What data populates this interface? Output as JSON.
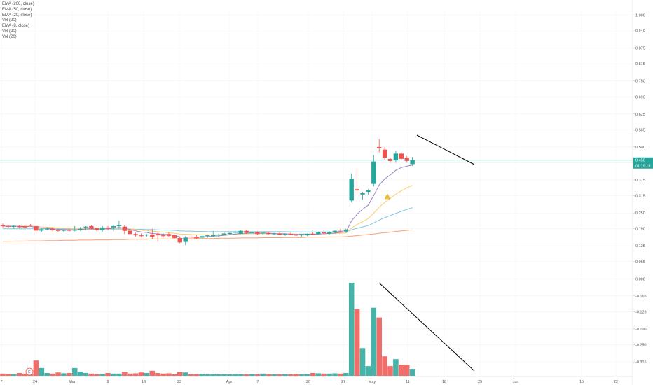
{
  "legend": [
    "EMA (200, close)",
    "EMA (50, close)",
    "EMA (20, close)",
    "Vol (20)",
    "EMA (8, close)",
    "Vol (20)",
    "Vol (20)"
  ],
  "price_tag": {
    "price": "0.450",
    "countdown": "01:19:19"
  },
  "marker_label": "E",
  "colors": {
    "up": "#26a69a",
    "down": "#ef5350",
    "ema200": "#f7a26b",
    "ema50": "#7ec8e3",
    "ema20": "#ffcc66",
    "ema8": "#9b86c2",
    "trend": "#000000",
    "price_line": "#26a69a"
  },
  "chart_data": {
    "type": "candlestick",
    "price_axis": {
      "ticks": [
        "1.000",
        "0.940",
        "0.875",
        "0.815",
        "0.750",
        "0.690",
        "0.625",
        "0.565",
        "0.500",
        "0.440",
        "0.375",
        "0.315",
        "0.250",
        "0.190",
        "0.125",
        "0.065",
        "0.000",
        "-0.065",
        "-0.125",
        "-0.190",
        "-0.250",
        "-0.315"
      ],
      "range": [
        -0.35,
        1.02
      ]
    },
    "time_axis": {
      "labels": [
        "7",
        "24",
        "Mar",
        "9",
        "16",
        "23",
        "Apr",
        "7",
        "20",
        "27",
        "May",
        "11",
        "18",
        "25",
        "Jun",
        "15",
        "22"
      ]
    },
    "candles": [
      {
        "o": 0.205,
        "h": 0.21,
        "l": 0.195,
        "c": 0.2
      },
      {
        "o": 0.2,
        "h": 0.205,
        "l": 0.192,
        "c": 0.198
      },
      {
        "o": 0.198,
        "h": 0.204,
        "l": 0.19,
        "c": 0.2
      },
      {
        "o": 0.2,
        "h": 0.205,
        "l": 0.193,
        "c": 0.196
      },
      {
        "o": 0.2,
        "h": 0.207,
        "l": 0.19,
        "c": 0.195
      },
      {
        "o": 0.205,
        "h": 0.208,
        "l": 0.2,
        "c": 0.202
      },
      {
        "o": 0.2,
        "h": 0.205,
        "l": 0.178,
        "c": 0.183
      },
      {
        "o": 0.183,
        "h": 0.192,
        "l": 0.178,
        "c": 0.188
      },
      {
        "o": 0.19,
        "h": 0.196,
        "l": 0.185,
        "c": 0.19
      },
      {
        "o": 0.19,
        "h": 0.195,
        "l": 0.18,
        "c": 0.185
      },
      {
        "o": 0.185,
        "h": 0.19,
        "l": 0.178,
        "c": 0.182
      },
      {
        "o": 0.183,
        "h": 0.188,
        "l": 0.177,
        "c": 0.185
      },
      {
        "o": 0.185,
        "h": 0.19,
        "l": 0.179,
        "c": 0.183
      },
      {
        "o": 0.183,
        "h": 0.2,
        "l": 0.18,
        "c": 0.186
      },
      {
        "o": 0.186,
        "h": 0.196,
        "l": 0.182,
        "c": 0.19
      },
      {
        "o": 0.195,
        "h": 0.2,
        "l": 0.185,
        "c": 0.198
      },
      {
        "o": 0.2,
        "h": 0.205,
        "l": 0.188,
        "c": 0.19
      },
      {
        "o": 0.192,
        "h": 0.197,
        "l": 0.18,
        "c": 0.185
      },
      {
        "o": 0.185,
        "h": 0.2,
        "l": 0.18,
        "c": 0.195
      },
      {
        "o": 0.195,
        "h": 0.2,
        "l": 0.185,
        "c": 0.19
      },
      {
        "o": 0.195,
        "h": 0.205,
        "l": 0.182,
        "c": 0.2
      },
      {
        "o": 0.2,
        "h": 0.22,
        "l": 0.19,
        "c": 0.203
      },
      {
        "o": 0.198,
        "h": 0.205,
        "l": 0.17,
        "c": 0.182
      },
      {
        "o": 0.183,
        "h": 0.19,
        "l": 0.165,
        "c": 0.17
      },
      {
        "o": 0.17,
        "h": 0.175,
        "l": 0.16,
        "c": 0.165
      },
      {
        "o": 0.165,
        "h": 0.172,
        "l": 0.158,
        "c": 0.162
      },
      {
        "o": 0.165,
        "h": 0.17,
        "l": 0.16,
        "c": 0.168
      },
      {
        "o": 0.168,
        "h": 0.19,
        "l": 0.15,
        "c": 0.16
      },
      {
        "o": 0.17,
        "h": 0.175,
        "l": 0.14,
        "c": 0.165
      },
      {
        "o": 0.165,
        "h": 0.172,
        "l": 0.158,
        "c": 0.162
      },
      {
        "o": 0.17,
        "h": 0.175,
        "l": 0.158,
        "c": 0.163
      },
      {
        "o": 0.165,
        "h": 0.17,
        "l": 0.15,
        "c": 0.155
      },
      {
        "o": 0.155,
        "h": 0.16,
        "l": 0.135,
        "c": 0.138
      },
      {
        "o": 0.14,
        "h": 0.162,
        "l": 0.128,
        "c": 0.156
      },
      {
        "o": 0.16,
        "h": 0.168,
        "l": 0.145,
        "c": 0.158
      },
      {
        "o": 0.16,
        "h": 0.165,
        "l": 0.15,
        "c": 0.154
      },
      {
        "o": 0.156,
        "h": 0.165,
        "l": 0.152,
        "c": 0.162
      },
      {
        "o": 0.162,
        "h": 0.167,
        "l": 0.156,
        "c": 0.165
      },
      {
        "o": 0.162,
        "h": 0.182,
        "l": 0.158,
        "c": 0.167
      },
      {
        "o": 0.165,
        "h": 0.172,
        "l": 0.16,
        "c": 0.168
      },
      {
        "o": 0.168,
        "h": 0.175,
        "l": 0.164,
        "c": 0.172
      },
      {
        "o": 0.17,
        "h": 0.176,
        "l": 0.166,
        "c": 0.174
      },
      {
        "o": 0.175,
        "h": 0.182,
        "l": 0.17,
        "c": 0.178
      },
      {
        "o": 0.172,
        "h": 0.185,
        "l": 0.17,
        "c": 0.182
      },
      {
        "o": 0.182,
        "h": 0.186,
        "l": 0.17,
        "c": 0.175
      },
      {
        "o": 0.175,
        "h": 0.18,
        "l": 0.17,
        "c": 0.177
      },
      {
        "o": 0.177,
        "h": 0.18,
        "l": 0.166,
        "c": 0.17
      },
      {
        "o": 0.172,
        "h": 0.178,
        "l": 0.168,
        "c": 0.175
      },
      {
        "o": 0.174,
        "h": 0.178,
        "l": 0.167,
        "c": 0.17
      },
      {
        "o": 0.17,
        "h": 0.175,
        "l": 0.166,
        "c": 0.172
      },
      {
        "o": 0.172,
        "h": 0.176,
        "l": 0.165,
        "c": 0.168
      },
      {
        "o": 0.168,
        "h": 0.172,
        "l": 0.163,
        "c": 0.17
      },
      {
        "o": 0.17,
        "h": 0.175,
        "l": 0.165,
        "c": 0.166
      },
      {
        "o": 0.167,
        "h": 0.171,
        "l": 0.162,
        "c": 0.165
      },
      {
        "o": 0.165,
        "h": 0.17,
        "l": 0.16,
        "c": 0.168
      },
      {
        "o": 0.165,
        "h": 0.172,
        "l": 0.163,
        "c": 0.171
      },
      {
        "o": 0.171,
        "h": 0.176,
        "l": 0.165,
        "c": 0.168
      },
      {
        "o": 0.17,
        "h": 0.178,
        "l": 0.168,
        "c": 0.176
      },
      {
        "o": 0.176,
        "h": 0.182,
        "l": 0.17,
        "c": 0.173
      },
      {
        "o": 0.172,
        "h": 0.18,
        "l": 0.168,
        "c": 0.178
      },
      {
        "o": 0.178,
        "h": 0.185,
        "l": 0.172,
        "c": 0.182
      },
      {
        "o": 0.182,
        "h": 0.19,
        "l": 0.176,
        "c": 0.18
      },
      {
        "o": 0.18,
        "h": 0.19,
        "l": 0.175,
        "c": 0.187
      },
      {
        "o": 0.297,
        "h": 0.4,
        "l": 0.29,
        "c": 0.38
      },
      {
        "o": 0.34,
        "h": 0.42,
        "l": 0.32,
        "c": 0.335
      },
      {
        "o": 0.32,
        "h": 0.33,
        "l": 0.3,
        "c": 0.325
      },
      {
        "o": 0.33,
        "h": 0.34,
        "l": 0.32,
        "c": 0.335
      },
      {
        "o": 0.36,
        "h": 0.47,
        "l": 0.35,
        "c": 0.445
      },
      {
        "o": 0.5,
        "h": 0.53,
        "l": 0.48,
        "c": 0.495
      },
      {
        "o": 0.49,
        "h": 0.5,
        "l": 0.45,
        "c": 0.46
      },
      {
        "o": 0.455,
        "h": 0.46,
        "l": 0.44,
        "c": 0.447
      },
      {
        "o": 0.45,
        "h": 0.485,
        "l": 0.44,
        "c": 0.475
      },
      {
        "o": 0.475,
        "h": 0.48,
        "l": 0.45,
        "c": 0.455
      },
      {
        "o": 0.46,
        "h": 0.465,
        "l": 0.44,
        "c": 0.447
      },
      {
        "o": 0.435,
        "h": 0.462,
        "l": 0.428,
        "c": 0.45
      }
    ],
    "ema8": [
      0.2,
      0.2,
      0.2,
      0.199,
      0.198,
      0.199,
      0.195,
      0.193,
      0.192,
      0.19,
      0.188,
      0.187,
      0.186,
      0.186,
      0.187,
      0.189,
      0.189,
      0.188,
      0.19,
      0.19,
      0.192,
      0.195,
      0.192,
      0.187,
      0.182,
      0.178,
      0.176,
      0.172,
      0.171,
      0.169,
      0.168,
      0.165,
      0.159,
      0.158,
      0.158,
      0.157,
      0.158,
      0.16,
      0.162,
      0.163,
      0.165,
      0.167,
      0.17,
      0.172,
      0.173,
      0.174,
      0.173,
      0.174,
      0.173,
      0.172,
      0.171,
      0.171,
      0.17,
      0.169,
      0.169,
      0.169,
      0.169,
      0.17,
      0.171,
      0.172,
      0.174,
      0.176,
      0.178,
      0.22,
      0.245,
      0.264,
      0.279,
      0.316,
      0.356,
      0.379,
      0.394,
      0.412,
      0.422,
      0.427,
      0.432
    ],
    "ema20": [
      0.2,
      0.2,
      0.2,
      0.2,
      0.2,
      0.2,
      0.198,
      0.197,
      0.196,
      0.195,
      0.193,
      0.192,
      0.191,
      0.19,
      0.19,
      0.191,
      0.191,
      0.19,
      0.191,
      0.191,
      0.191,
      0.192,
      0.191,
      0.189,
      0.187,
      0.185,
      0.183,
      0.181,
      0.179,
      0.177,
      0.175,
      0.173,
      0.17,
      0.169,
      0.168,
      0.167,
      0.167,
      0.167,
      0.167,
      0.167,
      0.168,
      0.168,
      0.169,
      0.17,
      0.171,
      0.171,
      0.171,
      0.171,
      0.171,
      0.171,
      0.171,
      0.171,
      0.17,
      0.17,
      0.17,
      0.17,
      0.17,
      0.17,
      0.171,
      0.171,
      0.172,
      0.173,
      0.174,
      0.193,
      0.206,
      0.217,
      0.228,
      0.249,
      0.272,
      0.29,
      0.305,
      0.321,
      0.334,
      0.345,
      0.355
    ],
    "ema50": [
      0.19,
      0.19,
      0.19,
      0.19,
      0.19,
      0.19,
      0.19,
      0.19,
      0.19,
      0.19,
      0.19,
      0.19,
      0.189,
      0.189,
      0.189,
      0.189,
      0.189,
      0.189,
      0.189,
      0.189,
      0.189,
      0.189,
      0.189,
      0.189,
      0.188,
      0.188,
      0.187,
      0.187,
      0.186,
      0.185,
      0.185,
      0.184,
      0.182,
      0.181,
      0.181,
      0.18,
      0.18,
      0.179,
      0.179,
      0.179,
      0.179,
      0.179,
      0.179,
      0.179,
      0.179,
      0.179,
      0.179,
      0.179,
      0.179,
      0.179,
      0.179,
      0.179,
      0.178,
      0.178,
      0.178,
      0.178,
      0.178,
      0.178,
      0.178,
      0.178,
      0.178,
      0.178,
      0.178,
      0.186,
      0.192,
      0.197,
      0.202,
      0.212,
      0.223,
      0.232,
      0.24,
      0.248,
      0.256,
      0.263,
      0.27
    ],
    "ema200": [
      0.142,
      0.142,
      0.143,
      0.143,
      0.143,
      0.144,
      0.144,
      0.144,
      0.145,
      0.145,
      0.145,
      0.146,
      0.146,
      0.146,
      0.147,
      0.147,
      0.147,
      0.148,
      0.148,
      0.148,
      0.149,
      0.149,
      0.149,
      0.15,
      0.15,
      0.15,
      0.15,
      0.151,
      0.151,
      0.151,
      0.151,
      0.152,
      0.152,
      0.152,
      0.152,
      0.153,
      0.153,
      0.153,
      0.153,
      0.154,
      0.154,
      0.154,
      0.154,
      0.155,
      0.155,
      0.155,
      0.155,
      0.156,
      0.156,
      0.156,
      0.156,
      0.157,
      0.157,
      0.157,
      0.157,
      0.158,
      0.158,
      0.158,
      0.158,
      0.159,
      0.159,
      0.159,
      0.16,
      0.162,
      0.164,
      0.166,
      0.168,
      0.17,
      0.173,
      0.175,
      0.177,
      0.18,
      0.182,
      0.184,
      0.186
    ],
    "volume": [
      0.08,
      0.06,
      0.05,
      0.1,
      0.08,
      0.07,
      0.55,
      0.28,
      0.1,
      0.08,
      0.12,
      0.09,
      0.1,
      0.28,
      0.15,
      0.1,
      0.08,
      0.05,
      0.06,
      0.1,
      0.08,
      0.08,
      0.14,
      0.08,
      0.09,
      0.12,
      0.1,
      0.18,
      0.1,
      0.08,
      0.09,
      0.06,
      0.14,
      0.12,
      0.06,
      0.06,
      0.07,
      0.05,
      0.07,
      0.05,
      0.06,
      0.05,
      0.07,
      0.06,
      0.05,
      0.06,
      0.05,
      0.08,
      0.06,
      0.05,
      0.05,
      0.06,
      0.05,
      0.07,
      0.05,
      0.06,
      0.1,
      0.09,
      0.08,
      0.08,
      0.09,
      0.08,
      0.1,
      3.35,
      2.4,
      1.0,
      0.35,
      2.45,
      2.1,
      0.7,
      0.35,
      0.6,
      0.4,
      0.4,
      0.25
    ]
  }
}
